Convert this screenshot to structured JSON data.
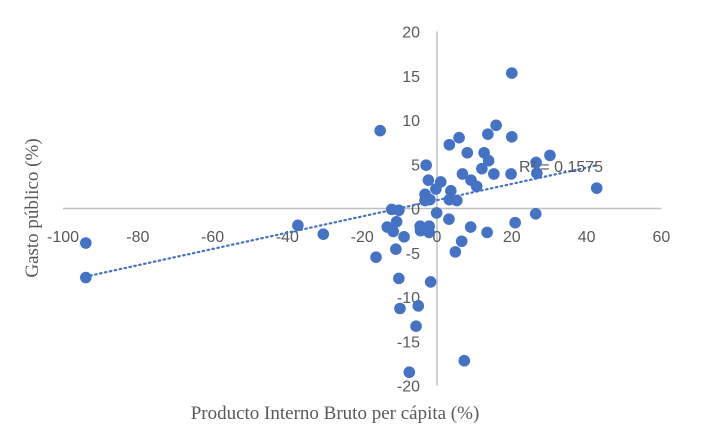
{
  "chart_data": {
    "type": "scatter",
    "title": "",
    "xlabel": "Producto Interno  Bruto per cápita (%)",
    "ylabel": "Gasto público (%)",
    "xlim": [
      -100,
      60
    ],
    "ylim": [
      -20,
      20
    ],
    "x_ticks": [
      -100,
      -80,
      -60,
      -40,
      -20,
      0,
      20,
      40,
      60
    ],
    "y_ticks": [
      20,
      15,
      10,
      5,
      0,
      -5,
      -10,
      -15,
      -20
    ],
    "grid": false,
    "legend": null,
    "marker_color": "#4472C4",
    "trendline": {
      "type": "linear",
      "style": "dotted",
      "color": "#4472C4",
      "x_start": -94,
      "y_start": -7.7,
      "x_end": 43,
      "y_end": 4.9,
      "label": "R² = 0.1575"
    },
    "points": [
      {
        "x": 20,
        "y": 15.3
      },
      {
        "x": -15.2,
        "y": 8.8
      },
      {
        "x": 15.8,
        "y": 9.4
      },
      {
        "x": 13.6,
        "y": 8.4
      },
      {
        "x": 20,
        "y": 8.1
      },
      {
        "x": 5.9,
        "y": 8.0
      },
      {
        "x": 3.3,
        "y": 7.2
      },
      {
        "x": 8.1,
        "y": 6.3
      },
      {
        "x": 12.6,
        "y": 6.3
      },
      {
        "x": 13.8,
        "y": 5.4
      },
      {
        "x": -2.9,
        "y": 4.9
      },
      {
        "x": 30.2,
        "y": 6.0
      },
      {
        "x": 26.5,
        "y": 5.2
      },
      {
        "x": 26.7,
        "y": 4.0
      },
      {
        "x": 19.8,
        "y": 3.9
      },
      {
        "x": 15.2,
        "y": 3.9
      },
      {
        "x": 12,
        "y": 4.5
      },
      {
        "x": 6.8,
        "y": 3.9
      },
      {
        "x": 9.1,
        "y": 3.2
      },
      {
        "x": 10.6,
        "y": 2.5
      },
      {
        "x": -2.3,
        "y": 3.2
      },
      {
        "x": 1,
        "y": 3.0
      },
      {
        "x": -0.3,
        "y": 2.2
      },
      {
        "x": 3.7,
        "y": 2.0
      },
      {
        "x": -3.2,
        "y": 1.6
      },
      {
        "x": -1.9,
        "y": 1.0
      },
      {
        "x": 3.3,
        "y": 1.0
      },
      {
        "x": 5.3,
        "y": 0.9
      },
      {
        "x": -3.2,
        "y": 0.9
      },
      {
        "x": 42.7,
        "y": 2.3
      },
      {
        "x": 26.4,
        "y": -0.6
      },
      {
        "x": 20.9,
        "y": -1.6
      },
      {
        "x": -12.1,
        "y": -0.1
      },
      {
        "x": -10.2,
        "y": -0.2
      },
      {
        "x": -0.1,
        "y": -0.5
      },
      {
        "x": 3.2,
        "y": -1.2
      },
      {
        "x": -10.8,
        "y": -1.5
      },
      {
        "x": -13.3,
        "y": -2.1
      },
      {
        "x": -4.5,
        "y": -2.0
      },
      {
        "x": -2.1,
        "y": -2.0
      },
      {
        "x": -11.7,
        "y": -2.6
      },
      {
        "x": -8.8,
        "y": -3.2
      },
      {
        "x": -4.4,
        "y": -2.5
      },
      {
        "x": -2.1,
        "y": -2.7
      },
      {
        "x": 9,
        "y": -2.1
      },
      {
        "x": 13.4,
        "y": -2.7
      },
      {
        "x": 6.6,
        "y": -3.7
      },
      {
        "x": -11,
        "y": -4.6
      },
      {
        "x": 4.9,
        "y": -4.9
      },
      {
        "x": -93.9,
        "y": -3.9
      },
      {
        "x": -93.9,
        "y": -7.8
      },
      {
        "x": -37.2,
        "y": -1.9
      },
      {
        "x": -30.4,
        "y": -2.9
      },
      {
        "x": -16.3,
        "y": -5.5
      },
      {
        "x": -10.2,
        "y": -7.9
      },
      {
        "x": -1.7,
        "y": -8.3
      },
      {
        "x": -9.9,
        "y": -11.3
      },
      {
        "x": -5,
        "y": -11.0
      },
      {
        "x": -5.6,
        "y": -13.3
      },
      {
        "x": -7.4,
        "y": -18.5
      },
      {
        "x": 7.3,
        "y": -17.2
      }
    ]
  }
}
